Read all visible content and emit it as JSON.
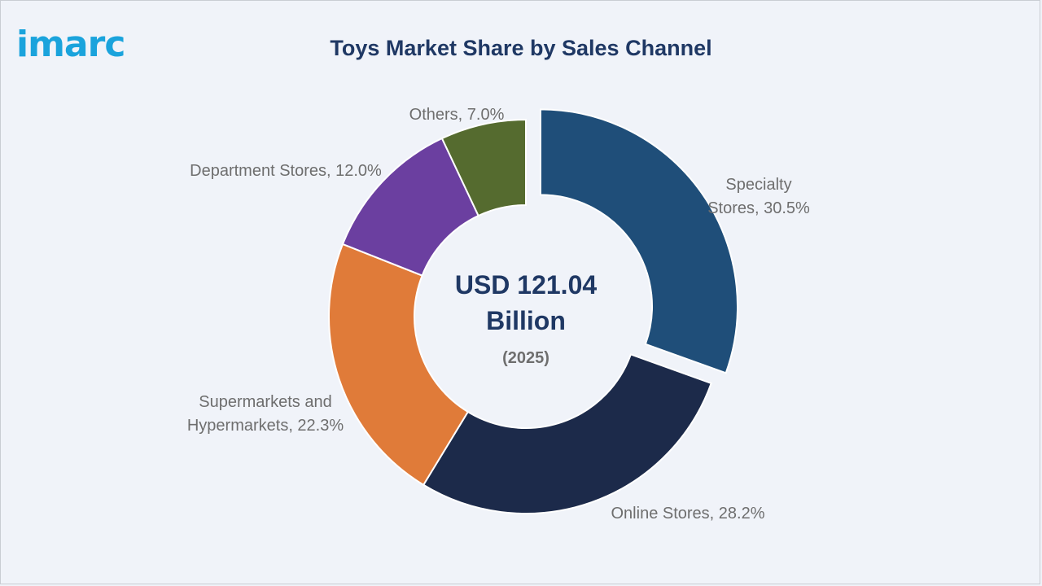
{
  "brand": {
    "name": "imarc",
    "color": "#1aa3dc"
  },
  "chart_data": {
    "type": "pie",
    "variant": "donut",
    "title": "Toys Market Share by Sales Channel",
    "center_label": {
      "line1": "USD 121.04",
      "line2": "Billion",
      "year": "(2025)"
    },
    "unit": "%",
    "slices": [
      {
        "label": "Specialty Stores",
        "label_lines": [
          "Specialty",
          "Stores, 30.5%"
        ],
        "value": 30.5,
        "color": "#1f4e79",
        "exploded": true
      },
      {
        "label": "Online Stores",
        "label_lines": [
          "Online Stores, 28.2%"
        ],
        "value": 28.2,
        "color": "#1c2a4a",
        "exploded": false
      },
      {
        "label": "Supermarkets and Hypermarkets",
        "label_lines": [
          "Supermarkets and",
          "Hypermarkets, 22.3%"
        ],
        "value": 22.3,
        "color": "#e07b39",
        "exploded": false
      },
      {
        "label": "Department Stores",
        "label_lines": [
          "Department Stores, 12.0%"
        ],
        "value": 12.0,
        "color": "#6b3fa0",
        "exploded": false
      },
      {
        "label": "Others",
        "label_lines": [
          "Others, 7.0%"
        ],
        "value": 7.0,
        "color": "#556b2f",
        "exploded": false
      }
    ]
  }
}
